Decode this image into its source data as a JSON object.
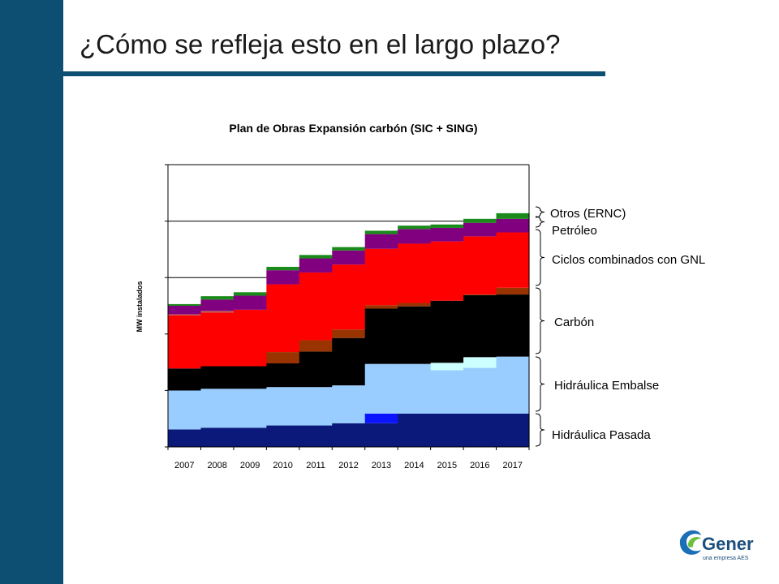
{
  "slide": {
    "title": "¿Cómo se refleja esto en el largo plazo?"
  },
  "chart_data": {
    "type": "area",
    "stacked": true,
    "step": true,
    "title": "Plan de Obras Expansión carbón (SIC + SING)",
    "ylabel": "MW instalados",
    "xlabel": "",
    "categories": [
      "2007",
      "2008",
      "2009",
      "2010",
      "2011",
      "2012",
      "2013",
      "2014",
      "2015",
      "2016",
      "2017"
    ],
    "ylim": [
      0,
      5
    ],
    "y_tick_labels_visible": false,
    "grid": "horizontal",
    "series": [
      {
        "key": "hp_base",
        "color": "#0b1a7a",
        "values": [
          0.31,
          0.34,
          0.34,
          0.38,
          0.38,
          0.42,
          0.42,
          0.59,
          0.59,
          0.59,
          0.59
        ]
      },
      {
        "key": "hp_new",
        "color": "#0a14ff",
        "values": [
          0,
          0,
          0,
          0,
          0,
          0,
          0.17,
          0,
          0,
          0,
          0
        ]
      },
      {
        "key": "he_base",
        "color": "#99ccff",
        "values": [
          0.69,
          0.69,
          0.69,
          0.68,
          0.68,
          0.67,
          0.88,
          0.88,
          0.77,
          0.81,
          1.01
        ]
      },
      {
        "key": "he_new",
        "color": "#ccffff",
        "values": [
          0,
          0,
          0,
          0,
          0,
          0,
          0,
          0,
          0.13,
          0.19,
          0
        ]
      },
      {
        "key": "car_base",
        "color": "#000000",
        "values": [
          0.39,
          0.4,
          0.4,
          0.42,
          0.63,
          0.84,
          0.98,
          1.02,
          1.1,
          1.1,
          1.1
        ]
      },
      {
        "key": "car_new",
        "color": "#993300",
        "values": [
          0,
          0,
          0,
          0.2,
          0.2,
          0.15,
          0.06,
          0.06,
          0,
          0.01,
          0.12
        ]
      },
      {
        "key": "ccgnl",
        "color": "#ff0000",
        "values": [
          0.94,
          0.95,
          1.0,
          1.2,
          1.2,
          1.15,
          1.0,
          1.05,
          1.05,
          1.03,
          0.98
        ]
      },
      {
        "key": "pet_new",
        "color": "#c0504d",
        "values": [
          0.02,
          0.03,
          0,
          0,
          0,
          0,
          0,
          0,
          0,
          0,
          0
        ]
      },
      {
        "key": "petroleo",
        "color": "#800080",
        "values": [
          0.15,
          0.2,
          0.25,
          0.25,
          0.25,
          0.25,
          0.26,
          0.26,
          0.24,
          0.24,
          0.24
        ]
      },
      {
        "key": "otros",
        "color": "#1a8a1a",
        "values": [
          0.03,
          0.06,
          0.06,
          0.06,
          0.06,
          0.06,
          0.06,
          0.06,
          0.06,
          0.07,
          0.1
        ]
      }
    ],
    "annotations": [
      {
        "label": "Otros (ERNC)"
      },
      {
        "label": "Petróleo"
      },
      {
        "label": "Ciclos combinados con GNL"
      },
      {
        "label": "Carbón"
      },
      {
        "label": "Hidráulica Embalse"
      },
      {
        "label": "Hidráulica Pasada"
      }
    ]
  },
  "logo": {
    "brand": "Gener",
    "tagline": "una empresa AES"
  }
}
